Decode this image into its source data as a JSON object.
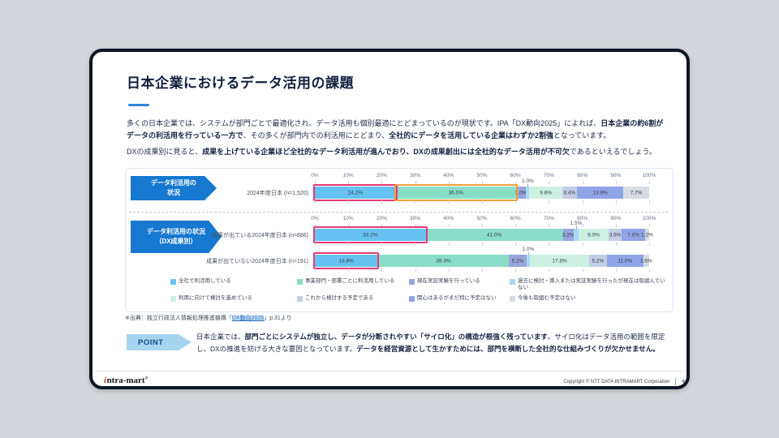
{
  "slide": {
    "title": "日本企業におけるデータ活用の課題",
    "paragraph1": [
      {
        "t": "多くの日本企業では、システムが部門ごとで最適化され、データ活用も個別最適にとどまっているのが現状です。IPA「DX動向2025」によれば、",
        "b": false
      },
      {
        "t": "日本企業の約6割がデータの利活用を行っている一方で",
        "b": true
      },
      {
        "t": "、その多くが部門内での利活用にとどまり、",
        "b": false
      },
      {
        "t": "全社的にデータを活用している企業はわずか2割強",
        "b": true
      },
      {
        "t": "となっています。",
        "b": false
      }
    ],
    "paragraph2": [
      {
        "t": "DXの成果別に見ると、",
        "b": false
      },
      {
        "t": "成果を上げている企業ほど全社的なデータ利活用が進んでおり、DXの成果創出には全社的なデータ活用が不可欠",
        "b": true
      },
      {
        "t": "であるといえるでしょう。",
        "b": false
      }
    ]
  },
  "chart_data": {
    "type": "bar",
    "subtype": "horizontal-stacked-percent",
    "axis_ticks": [
      "0%",
      "10%",
      "20%",
      "30%",
      "40%",
      "50%",
      "60%",
      "70%",
      "80%",
      "90%",
      "100%"
    ],
    "axis_range": [
      0,
      100
    ],
    "series_legend": [
      {
        "label": "全社で利活用している",
        "color": "#66c2f0"
      },
      {
        "label": "事業部門・部署ごとに利活用している",
        "color": "#8adec7"
      },
      {
        "label": "現在実証実験を行っている",
        "color": "#99a4dc"
      },
      {
        "label": "過去に検討・導入または実証実験を行ったが現在は取組んでいない",
        "color": "#a6d9f3"
      },
      {
        "label": "利用に向けて検討を進めている",
        "color": "#cdf0e3"
      },
      {
        "label": "これから検討する予定である",
        "color": "#c3cde3"
      },
      {
        "label": "関心はあるがまだ特に予定はない",
        "color": "#90a5e8"
      },
      {
        "label": "今後も取組む予定はない",
        "color": "#d8dce2"
      }
    ],
    "highlight_colors": {
      "pink": "#e8387a",
      "orange": "#f09f3c"
    },
    "sections": [
      {
        "label_lines": [
          "データ利活用の",
          "状況"
        ],
        "rows": [
          {
            "label": "2024年度日本 (n=1,520)",
            "values": [
              24.2,
              36.0,
              3.0,
              1.0,
              9.8,
              4.4,
              13.9,
              7.7
            ],
            "callout_index": 3,
            "callout_label": "1.0%",
            "highlights": [
              {
                "index": 0,
                "color": "#e8387a"
              },
              {
                "index": 1,
                "color": "#f09f3c"
              }
            ]
          }
        ]
      },
      {
        "label_lines": [
          "データ利活用の状況",
          "（DX成果別）"
        ],
        "rows": [
          {
            "label": "成果が出ている2024年度日本 (n=686)",
            "values": [
              33.2,
              41.0,
              3.2,
              1.5,
              9.0,
              3.9,
              7.0,
              1.2
            ],
            "callout_index": 3,
            "callout_label": "1.5%",
            "highlights": [
              {
                "index": 0,
                "color": "#e8387a"
              }
            ]
          },
          {
            "label": "成果が出ていない2024年度日本 (n=191)",
            "values": [
              18.8,
              39.3,
              5.2,
              1.0,
              17.8,
              5.2,
              11.0,
              1.6
            ],
            "callout_index": 3,
            "callout_label": "1.0%",
            "highlights": [
              {
                "index": 0,
                "color": "#e8387a"
              }
            ]
          }
        ]
      }
    ]
  },
  "source": {
    "prefix": "※出典：独立行政法人情報処理推進機構「",
    "link": "DX動向2025",
    "suffix": "」p.31より"
  },
  "point": {
    "badge": "POINT",
    "text": [
      {
        "t": "日本企業では、",
        "b": false
      },
      {
        "t": "部門ごとにシステムが独立し、データが分断されやすい「サイロ化」の構造が根強く残っています",
        "b": true
      },
      {
        "t": "。サイロ化はデータ活用の範囲を限定し、DXの推進を妨げる大きな要因となっています。",
        "b": false
      },
      {
        "t": "データを経営資源として生かすためには、部門を横断した全社的な仕組みづくりが欠かせません。",
        "b": true
      }
    ]
  },
  "footer": {
    "logo_i": "i",
    "logo_rest": "ntra-mart",
    "logo_reg": "®",
    "copyright": "Copyright © NTT DATA INTRAMART Corporation",
    "page": "4"
  }
}
